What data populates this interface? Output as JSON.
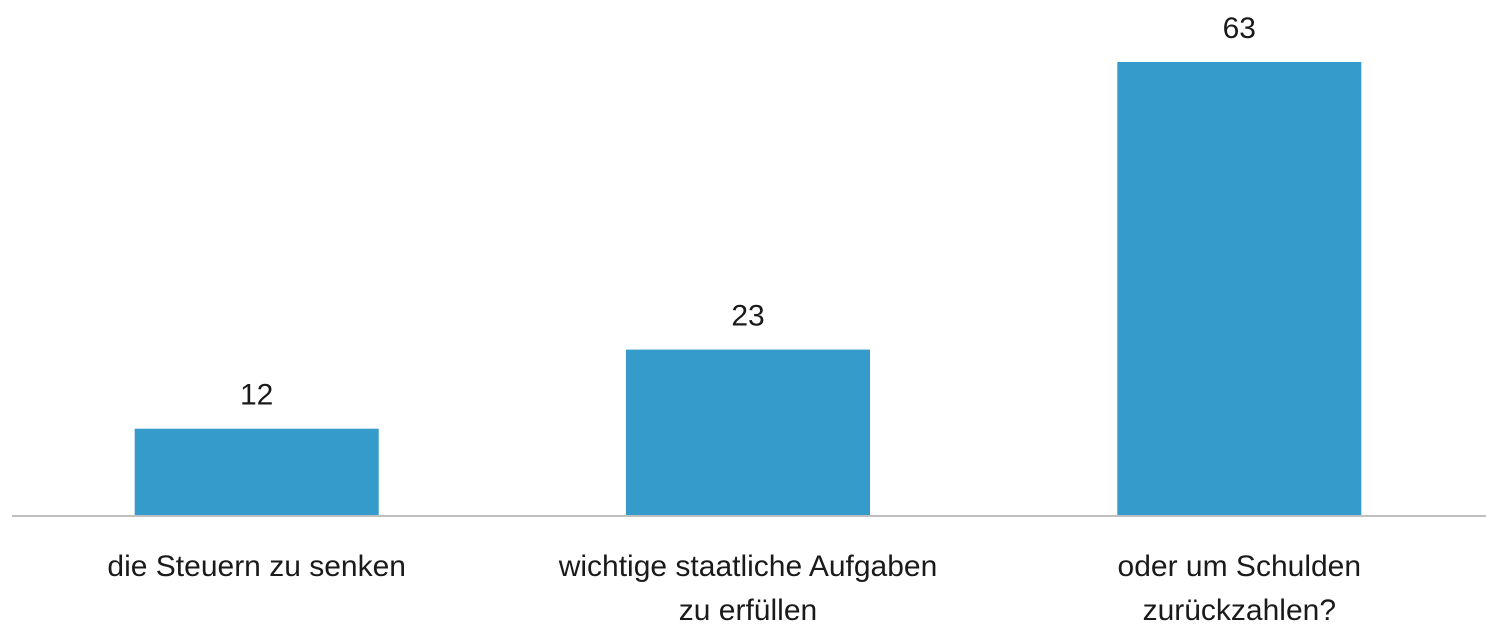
{
  "chart_data": {
    "type": "bar",
    "categories": [
      [
        "die Steuern zu senken"
      ],
      [
        "wichtige staatliche Aufgaben",
        "zu erfüllen"
      ],
      [
        "oder um Schulden",
        "zurückzahlen?"
      ]
    ],
    "values": [
      12,
      23,
      63
    ],
    "data_labels": [
      "12",
      "23",
      "63"
    ],
    "ylim": [
      0,
      63
    ],
    "grid": false,
    "legend": "none",
    "bar_color": "#349bcb",
    "axis_color": "#bfbfbf"
  }
}
